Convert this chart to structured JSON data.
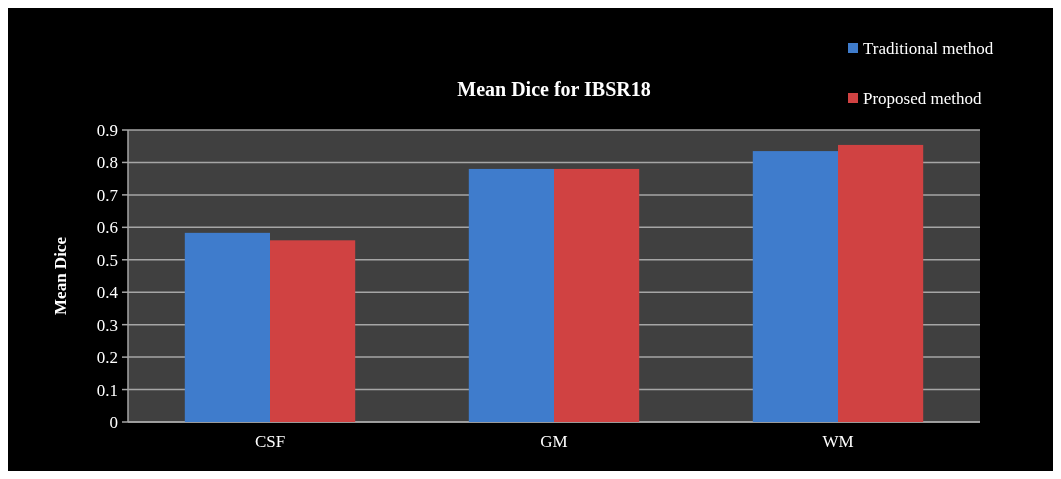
{
  "chart_data": {
    "type": "bar",
    "title": "Mean Dice for IBSR18",
    "ylabel": "Mean Dice",
    "categories": [
      "CSF",
      "GM",
      "WM"
    ],
    "series": [
      {
        "name": "Traditional method",
        "color": "#3f7ccc",
        "values": [
          0.583,
          0.78,
          0.835
        ]
      },
      {
        "name": "Proposed method",
        "color": "#d04242",
        "values": [
          0.56,
          0.78,
          0.854
        ]
      }
    ],
    "ylim": [
      0,
      0.9
    ],
    "yticks": [
      0,
      0.1,
      0.2,
      0.3,
      0.4,
      0.5,
      0.6,
      0.7,
      0.8,
      0.9
    ],
    "grid": "y",
    "legend": "top right"
  }
}
